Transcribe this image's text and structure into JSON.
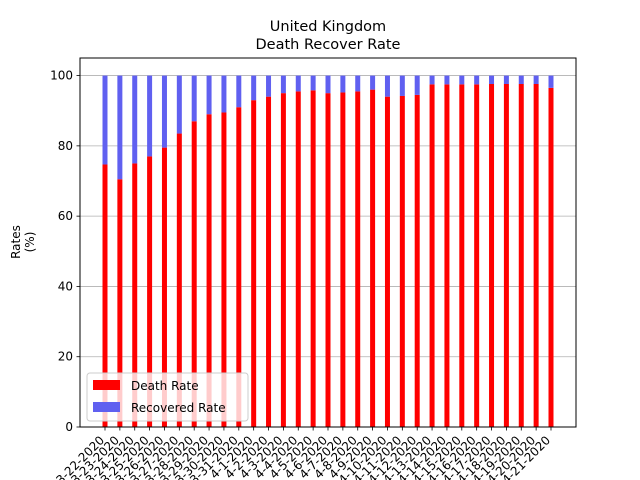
{
  "chart_data": {
    "type": "bar",
    "stacked": true,
    "title": "United Kingdom",
    "subtitle": "Death Recover Rate",
    "xlabel": "",
    "ylabel": "Rates\n(%)",
    "ylim": [
      0,
      105
    ],
    "yticks": [
      0,
      20,
      40,
      60,
      80,
      100
    ],
    "grid": "y",
    "legend_position": "lower-left",
    "categories": [
      "3-22-2020",
      "3-23-2020",
      "3-24-2020",
      "3-25-2020",
      "3-26-2020",
      "3-27-2020",
      "3-28-2020",
      "3-29-2020",
      "3-30-2020",
      "3-31-2020",
      "4-1-2020",
      "4-2-2020",
      "4-3-2020",
      "4-4-2020",
      "4-5-2020",
      "4-6-2020",
      "4-7-2020",
      "4-8-2020",
      "4-9-2020",
      "4-10-2020",
      "4-11-2020",
      "4-12-2020",
      "4-13-2020",
      "4-14-2020",
      "4-15-2020",
      "4-16-2020",
      "4-17-2020",
      "4-18-2020",
      "4-19-2020",
      "4-20-2020",
      "4-21-2020"
    ],
    "series": [
      {
        "name": "Death Rate",
        "color": "#ff0000",
        "values": [
          74.7,
          70.5,
          75.0,
          77.0,
          79.5,
          83.5,
          87.0,
          89.0,
          89.5,
          91.0,
          93.0,
          94.0,
          95.0,
          95.5,
          95.8,
          95.0,
          95.2,
          95.5,
          96.0,
          94.0,
          94.2,
          94.5,
          97.5,
          97.5,
          97.5,
          97.5,
          97.6,
          97.6,
          97.6,
          97.6,
          96.5
        ]
      },
      {
        "name": "Recovered Rate",
        "color": "#6060f0",
        "values": [
          25.3,
          29.5,
          25.0,
          23.0,
          20.5,
          16.5,
          13.0,
          11.0,
          10.5,
          9.0,
          7.0,
          6.0,
          5.0,
          4.5,
          4.2,
          5.0,
          4.8,
          4.5,
          4.0,
          6.0,
          5.8,
          5.5,
          2.5,
          2.5,
          2.5,
          2.5,
          2.4,
          2.4,
          2.4,
          2.4,
          3.5
        ]
      }
    ]
  }
}
